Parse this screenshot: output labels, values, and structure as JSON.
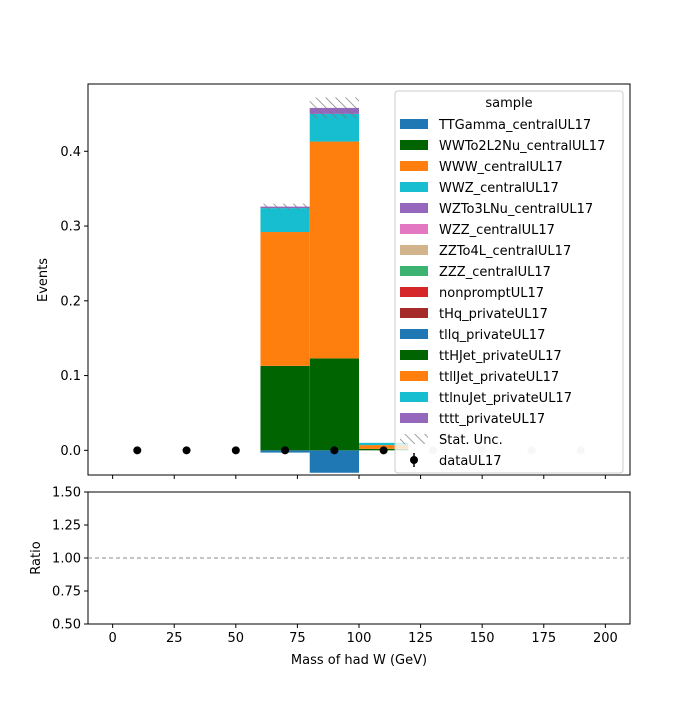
{
  "chart_data": {
    "type": "bar",
    "stacked": true,
    "x_bin_edges": [
      0,
      20,
      40,
      60,
      80,
      100,
      120,
      140,
      160,
      180,
      200
    ],
    "xlabel": "Mass of had W (GeV)",
    "ylabel": "Events",
    "ratio_ylabel": "Ratio",
    "xlim": [
      -10,
      210
    ],
    "ylim": [
      -0.033,
      0.49
    ],
    "ratio_ylim": [
      0.5,
      1.5
    ],
    "ratio_reference": 1.0,
    "xticks": [
      "0",
      "25",
      "50",
      "75",
      "100",
      "125",
      "150",
      "175",
      "200"
    ],
    "xtick_values": [
      0,
      25,
      50,
      75,
      100,
      125,
      150,
      175,
      200
    ],
    "yticks": [
      "0.0",
      "0.1",
      "0.2",
      "0.3",
      "0.4"
    ],
    "ytick_values": [
      0.0,
      0.1,
      0.2,
      0.3,
      0.4
    ],
    "ratio_yticks": [
      "0.50",
      "0.75",
      "1.00",
      "1.25",
      "1.50"
    ],
    "ratio_ytick_values": [
      0.5,
      0.75,
      1.0,
      1.25,
      1.5
    ],
    "legend_title": "sample",
    "legend_placement": "top-right",
    "series": [
      {
        "name": "TTGamma_centralUL17",
        "color": "#1f77b4",
        "values": [
          0,
          0,
          0,
          -0.003,
          -0.03,
          0,
          0,
          0,
          0,
          0
        ]
      },
      {
        "name": "WWTo2L2Nu_centralUL17",
        "color": "#006400",
        "values": [
          0,
          0,
          0,
          0,
          0,
          0,
          0,
          0,
          0,
          0
        ]
      },
      {
        "name": "WWW_centralUL17",
        "color": "#ff7f0e",
        "values": [
          0,
          0,
          0,
          0,
          0,
          0,
          0,
          0,
          0,
          0
        ]
      },
      {
        "name": "WWZ_centralUL17",
        "color": "#17becf",
        "values": [
          0,
          0,
          0,
          0,
          0,
          0,
          0,
          0,
          0,
          0
        ]
      },
      {
        "name": "WZTo3LNu_centralUL17",
        "color": "#9467bd",
        "values": [
          0,
          0,
          0,
          0,
          0,
          0,
          0,
          0,
          0,
          0
        ]
      },
      {
        "name": "WZZ_centralUL17",
        "color": "#e377c2",
        "values": [
          0,
          0,
          0,
          0,
          0,
          0,
          0,
          0,
          0,
          0
        ]
      },
      {
        "name": "ZZTo4L_centralUL17",
        "color": "#d2b48c",
        "values": [
          0,
          0,
          0,
          0,
          0,
          0,
          0,
          0,
          0,
          0
        ]
      },
      {
        "name": "ZZZ_centralUL17",
        "color": "#3cb371",
        "values": [
          0,
          0,
          0,
          0,
          0,
          0,
          0,
          0,
          0,
          0
        ]
      },
      {
        "name": "nonpromptUL17",
        "color": "#d62728",
        "values": [
          0,
          0,
          0,
          0,
          0,
          0,
          0,
          0,
          0,
          0
        ]
      },
      {
        "name": "tHq_privateUL17",
        "color": "#a52a2a",
        "values": [
          0,
          0,
          0,
          0,
          0,
          0,
          0,
          0,
          0,
          0
        ]
      },
      {
        "name": "tllq_privateUL17",
        "color": "#1f77b4",
        "values": [
          0,
          0,
          0,
          0,
          0,
          0,
          0,
          0,
          0,
          0
        ]
      },
      {
        "name": "ttHJet_privateUL17",
        "color": "#006400",
        "values": [
          0,
          0,
          0,
          0.113,
          0.123,
          0.002,
          0,
          0,
          0,
          0
        ]
      },
      {
        "name": "ttllJet_privateUL17",
        "color": "#ff7f0e",
        "values": [
          0,
          0,
          0,
          0.179,
          0.29,
          0.005,
          0,
          0,
          0,
          0
        ]
      },
      {
        "name": "ttlnuJet_privateUL17",
        "color": "#17becf",
        "values": [
          0,
          0,
          0,
          0.032,
          0.037,
          0.003,
          0,
          0,
          0,
          0
        ]
      },
      {
        "name": "tttt_privateUL17",
        "color": "#9467bd",
        "values": [
          0,
          0,
          0,
          0.002,
          0.008,
          0,
          0,
          0,
          0,
          0
        ]
      }
    ],
    "stat_unc_label": "Stat. Unc.",
    "stat_unc": [
      0,
      0,
      0,
      0.004,
      0.014,
      0,
      0,
      0,
      0,
      0
    ],
    "data_label": "dataUL17",
    "data_x": [
      10,
      30,
      50,
      70,
      90,
      110,
      130,
      150,
      170,
      190
    ],
    "data_y": [
      0,
      0,
      0,
      0,
      0,
      0,
      0,
      0,
      0,
      0
    ]
  }
}
